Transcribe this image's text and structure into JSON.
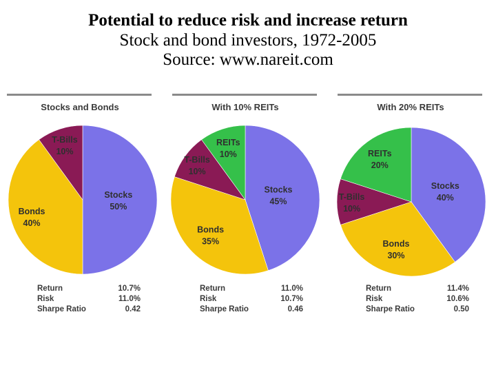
{
  "title": {
    "main": "Potential to reduce risk and increase return",
    "subtitle": "Stock and bond investors, 1972-2005",
    "source": "Source: www.nareit.com"
  },
  "chart_data": [
    {
      "type": "pie",
      "title": "Stocks and Bonds",
      "slices": [
        {
          "name": "Stocks",
          "value": 50,
          "label": "50%",
          "color": "#7b72e8"
        },
        {
          "name": "Bonds",
          "value": 40,
          "label": "40%",
          "color": "#f4c40c"
        },
        {
          "name": "T-Bills",
          "value": 10,
          "label": "10%",
          "color": "#8a1a55"
        }
      ],
      "stats": [
        {
          "label": "Return",
          "value": "10.7%"
        },
        {
          "label": "Risk",
          "value": "11.0%"
        },
        {
          "label": "Sharpe Ratio",
          "value": "0.42"
        }
      ]
    },
    {
      "type": "pie",
      "title": "With 10% REITs",
      "slices": [
        {
          "name": "Stocks",
          "value": 45,
          "label": "45%",
          "color": "#7b72e8"
        },
        {
          "name": "Bonds",
          "value": 35,
          "label": "35%",
          "color": "#f4c40c"
        },
        {
          "name": "T-Bills",
          "value": 10,
          "label": "10%",
          "color": "#8a1a55"
        },
        {
          "name": "REITs",
          "value": 10,
          "label": "10%",
          "color": "#35c04a"
        }
      ],
      "stats": [
        {
          "label": "Return",
          "value": "11.0%"
        },
        {
          "label": "Risk",
          "value": "10.7%"
        },
        {
          "label": "Sharpe Ratio",
          "value": "0.46"
        }
      ]
    },
    {
      "type": "pie",
      "title": "With 20% REITs",
      "slices": [
        {
          "name": "Stocks",
          "value": 40,
          "label": "40%",
          "color": "#7b72e8"
        },
        {
          "name": "Bonds",
          "value": 30,
          "label": "30%",
          "color": "#f4c40c"
        },
        {
          "name": "T-Bills",
          "value": 10,
          "label": "10%",
          "color": "#8a1a55"
        },
        {
          "name": "REITs",
          "value": 20,
          "label": "20%",
          "color": "#35c04a"
        }
      ],
      "stats": [
        {
          "label": "Return",
          "value": "11.4%"
        },
        {
          "label": "Risk",
          "value": "10.6%"
        },
        {
          "label": "Sharpe Ratio",
          "value": "0.50"
        }
      ]
    }
  ]
}
